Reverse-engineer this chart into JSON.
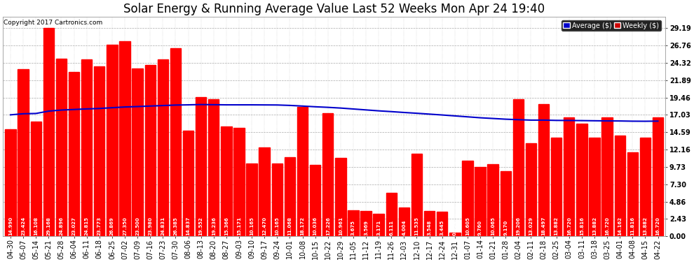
{
  "title": "Solar Energy & Running Average Value Last 52 Weeks Mon Apr 24 19:40",
  "copyright": "Copyright 2017 Cartronics.com",
  "categories": [
    "04-30",
    "05-07",
    "05-14",
    "05-21",
    "05-28",
    "06-04",
    "06-11",
    "06-18",
    "06-25",
    "07-02",
    "07-09",
    "07-16",
    "07-23",
    "07-30",
    "08-06",
    "08-13",
    "08-20",
    "08-27",
    "09-03",
    "09-10",
    "09-17",
    "09-24",
    "10-01",
    "10-08",
    "10-15",
    "10-22",
    "10-29",
    "11-05",
    "11-12",
    "11-19",
    "11-26",
    "12-03",
    "12-10",
    "12-17",
    "12-24",
    "12-31",
    "01-07",
    "01-14",
    "01-21",
    "01-28",
    "02-04",
    "02-11",
    "02-18",
    "02-25",
    "03-04",
    "03-11",
    "03-18",
    "03-25",
    "04-01",
    "04-08",
    "04-15",
    "04-22"
  ],
  "weekly_values": [
    14.99,
    23.424,
    16.108,
    29.168,
    24.896,
    23.027,
    24.815,
    23.773,
    26.869,
    27.35,
    23.5,
    23.98,
    24.831,
    26.385,
    14.837,
    19.552,
    19.236,
    15.366,
    15.171,
    10.165,
    12.47,
    10.165,
    11.068,
    18.172,
    10.036,
    17.226,
    10.961,
    3.675,
    3.569,
    3.171,
    6.111,
    4.004,
    11.535,
    3.548,
    3.445,
    0.554,
    10.605,
    9.76,
    10.065,
    9.17,
    19.206,
    13.029,
    18.497,
    13.882,
    16.72,
    15.816,
    13.882,
    16.72,
    14.162,
    11.816,
    13.882,
    16.72
  ],
  "running_avg": [
    17.03,
    17.18,
    17.22,
    17.55,
    17.7,
    17.78,
    17.86,
    17.92,
    18.03,
    18.13,
    18.19,
    18.26,
    18.33,
    18.4,
    18.43,
    18.47,
    18.45,
    18.43,
    18.43,
    18.43,
    18.42,
    18.41,
    18.35,
    18.26,
    18.16,
    18.08,
    17.98,
    17.85,
    17.72,
    17.59,
    17.48,
    17.36,
    17.25,
    17.13,
    17.01,
    16.88,
    16.75,
    16.62,
    16.52,
    16.42,
    16.35,
    16.29,
    16.29,
    16.25,
    16.24,
    16.22,
    16.2,
    16.18,
    16.17,
    16.14,
    16.13,
    16.15
  ],
  "bar_color": "#ff0000",
  "line_color": "#0000cc",
  "bg_color": "#ffffff",
  "plot_bg": "#ffffff",
  "grid_color": "#aaaaaa",
  "yticks": [
    0.0,
    2.43,
    4.86,
    7.3,
    9.73,
    12.16,
    14.59,
    17.03,
    19.46,
    21.89,
    24.32,
    26.76,
    29.19
  ],
  "legend_avg_bg": "#0000cc",
  "legend_weekly_bg": "#cc0000",
  "title_fontsize": 12,
  "tick_fontsize": 7,
  "bar_value_fontsize": 5,
  "copyright_fontsize": 6.5
}
